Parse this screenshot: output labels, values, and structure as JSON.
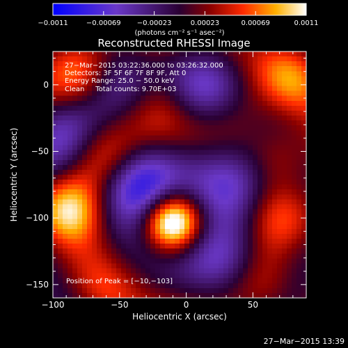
{
  "chart_data": {
    "type": "heatmap",
    "title": "Reconstructed RHESSI Image",
    "xlabel": "Heliocentric X (arcsec)",
    "ylabel": "Heliocentric Y (arcsec)",
    "xlim": [
      -100,
      90
    ],
    "ylim": [
      -160,
      25
    ],
    "x_ticks": [
      -100,
      -50,
      0,
      50
    ],
    "x_tick_labels": [
      "−100",
      "−50",
      "0",
      "50"
    ],
    "y_ticks": [
      0,
      -50,
      -100,
      -150
    ],
    "y_tick_labels": [
      "0",
      "−50",
      "−100",
      "−150"
    ],
    "annotations": [
      "27−Mar−2015 03:22:36.000 to 03:26:32.000",
      "Detectors: 3F 5F 6F 7F 8F 9F, Att 0",
      "Energy Range: 25.0 − 50.0 keV",
      "Clean     Total counts: 9.70E+03"
    ],
    "peak_label": "Position of Peak = [−10,−103]",
    "peak": [
      -10,
      -103
    ],
    "colorbar": {
      "tick_labels": [
        "−0.0011",
        "−0.00069",
        "−0.00023",
        "0.00023",
        "0.00069",
        "0.0011"
      ],
      "range": [
        -0.0011,
        0.0011
      ],
      "unit_label": "(photons cm⁻² s⁻¹ asec⁻²)"
    },
    "sources": [
      {
        "x": -10,
        "y": -103,
        "amp": 1.0
      },
      {
        "x": -92,
        "y": -94,
        "amp": 0.78
      },
      {
        "x": 78,
        "y": -100,
        "amp": 0.45
      },
      {
        "x": -80,
        "y": 5,
        "amp": 0.5
      },
      {
        "x": 78,
        "y": 5,
        "amp": 0.45
      },
      {
        "x": -20,
        "y": -10,
        "amp": 0.35
      },
      {
        "x": 40,
        "y": -15,
        "amp": 0.3
      },
      {
        "x": 70,
        "y": -55,
        "amp": 0.38
      },
      {
        "x": -60,
        "y": -55,
        "amp": 0.35
      },
      {
        "x": -60,
        "y": -150,
        "amp": 0.2
      },
      {
        "x": 60,
        "y": -150,
        "amp": 0.25
      }
    ],
    "troughs": [
      {
        "x": -35,
        "y": -75,
        "amp": -0.75
      },
      {
        "x": 40,
        "y": -70,
        "amp": -0.7
      },
      {
        "x": 15,
        "y": 0,
        "amp": -0.55
      },
      {
        "x": -95,
        "y": -40,
        "amp": -0.45
      },
      {
        "x": -55,
        "y": 10,
        "amp": -0.4
      },
      {
        "x": 30,
        "y": -135,
        "amp": -0.5
      }
    ]
  },
  "footer": {
    "timestamp": "27−Mar−2015 13:39"
  }
}
